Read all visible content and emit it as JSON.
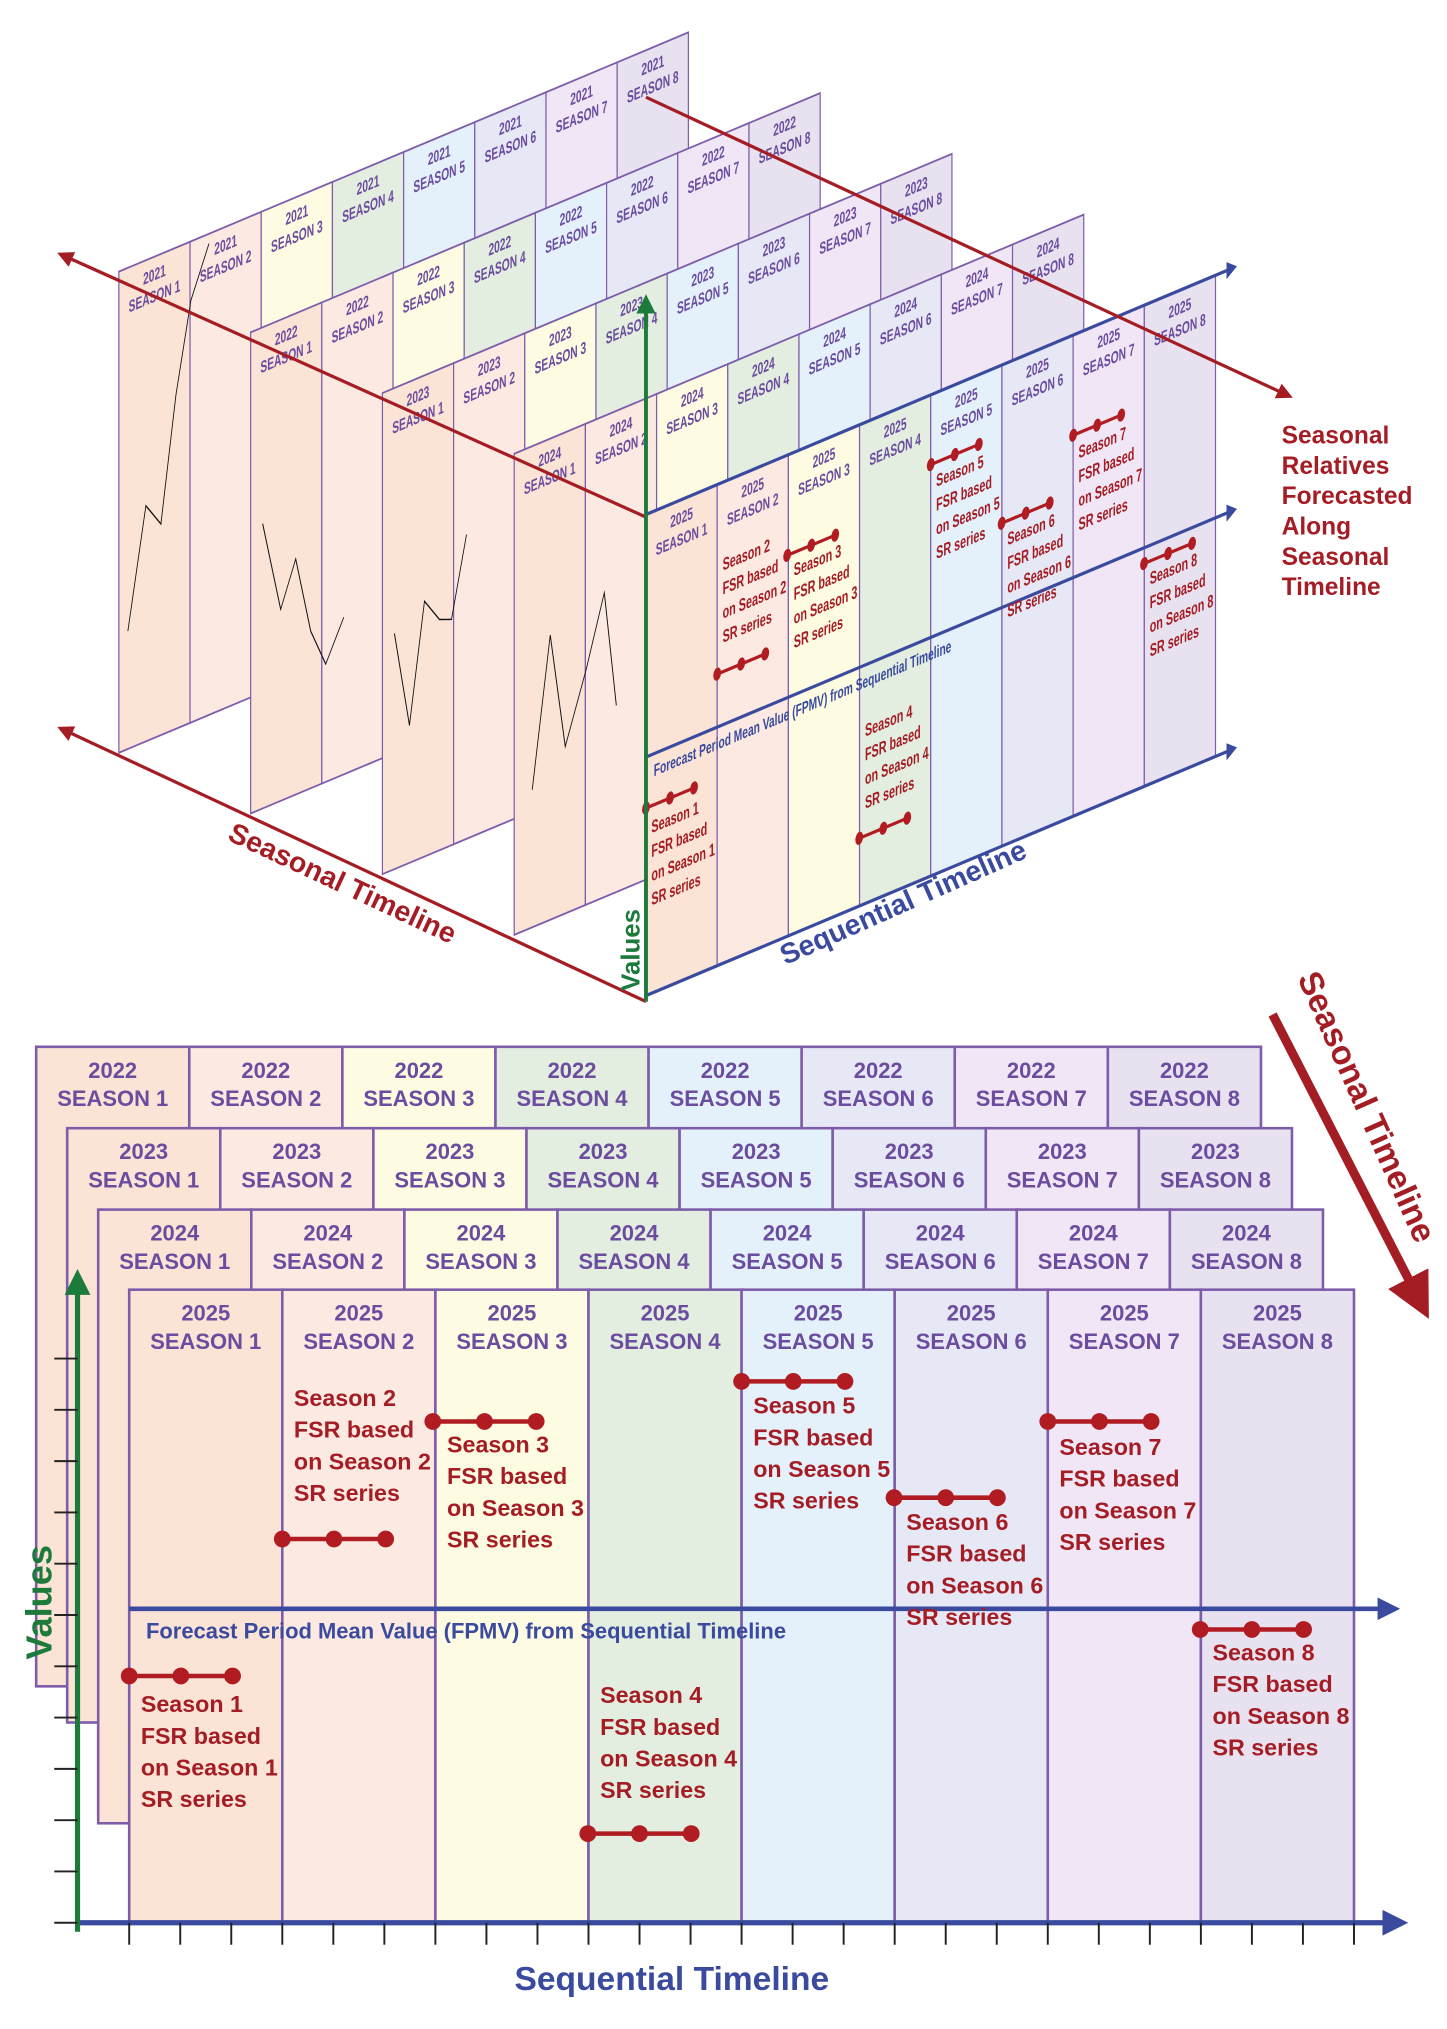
{
  "labels": {
    "seasonal_timeline": "Seasonal Timeline",
    "sequential_timeline": "Sequential Timeline",
    "values": "Values",
    "fpmv": "Forecast Period Mean Value (FPMV) from Sequential Timeline",
    "side_note": [
      "Seasonal",
      "Relatives",
      "Forecasted",
      "Along",
      "Seasonal",
      "Timeline"
    ]
  },
  "years": [
    "2021",
    "2022",
    "2023",
    "2024",
    "2025"
  ],
  "seasons": [
    "SEASON 1",
    "SEASON 2",
    "SEASON 3",
    "SEASON 4",
    "SEASON 5",
    "SEASON 6",
    "SEASON 7",
    "SEASON 8"
  ],
  "forecasts": [
    [
      "Season 1",
      "FSR based",
      "on Season 1",
      "SR series"
    ],
    [
      "Season 2",
      "FSR based",
      "on Season 2",
      "SR series"
    ],
    [
      "Season 3",
      "FSR based",
      "on Season 3",
      "SR series"
    ],
    [
      "Season 4",
      "FSR based",
      "on Season 4",
      "SR series"
    ],
    [
      "Season 5",
      "FSR based",
      "on Season 5",
      "SR series"
    ],
    [
      "Season 6",
      "FSR based",
      "on Season 6",
      "SR series"
    ],
    [
      "Season 7",
      "FSR based",
      "on Season 7",
      "SR series"
    ],
    [
      "Season 8",
      "FSR based",
      "on Season 8",
      "SR series"
    ]
  ]
}
